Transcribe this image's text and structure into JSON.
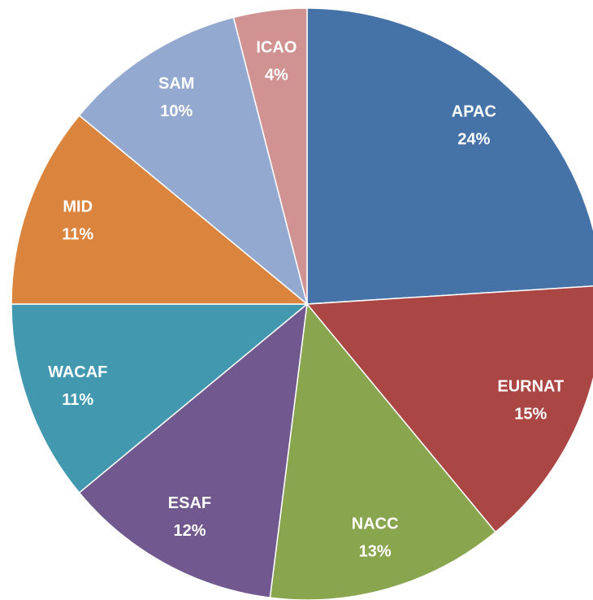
{
  "chart_data": {
    "type": "pie",
    "categories": [
      "APAC",
      "EURNAT",
      "NACC",
      "ESAF",
      "WACAF",
      "MID",
      "SAM",
      "ICAO"
    ],
    "values": [
      24,
      15,
      13,
      12,
      11,
      11,
      10,
      4
    ],
    "value_labels": [
      "24%",
      "15%",
      "13%",
      "12%",
      "11%",
      "11%",
      "10%",
      "4%"
    ],
    "colors": [
      "#4572a7",
      "#aa4643",
      "#89a54e",
      "#71588f",
      "#4198af",
      "#db843d",
      "#93a9cf",
      "#d19392"
    ]
  }
}
